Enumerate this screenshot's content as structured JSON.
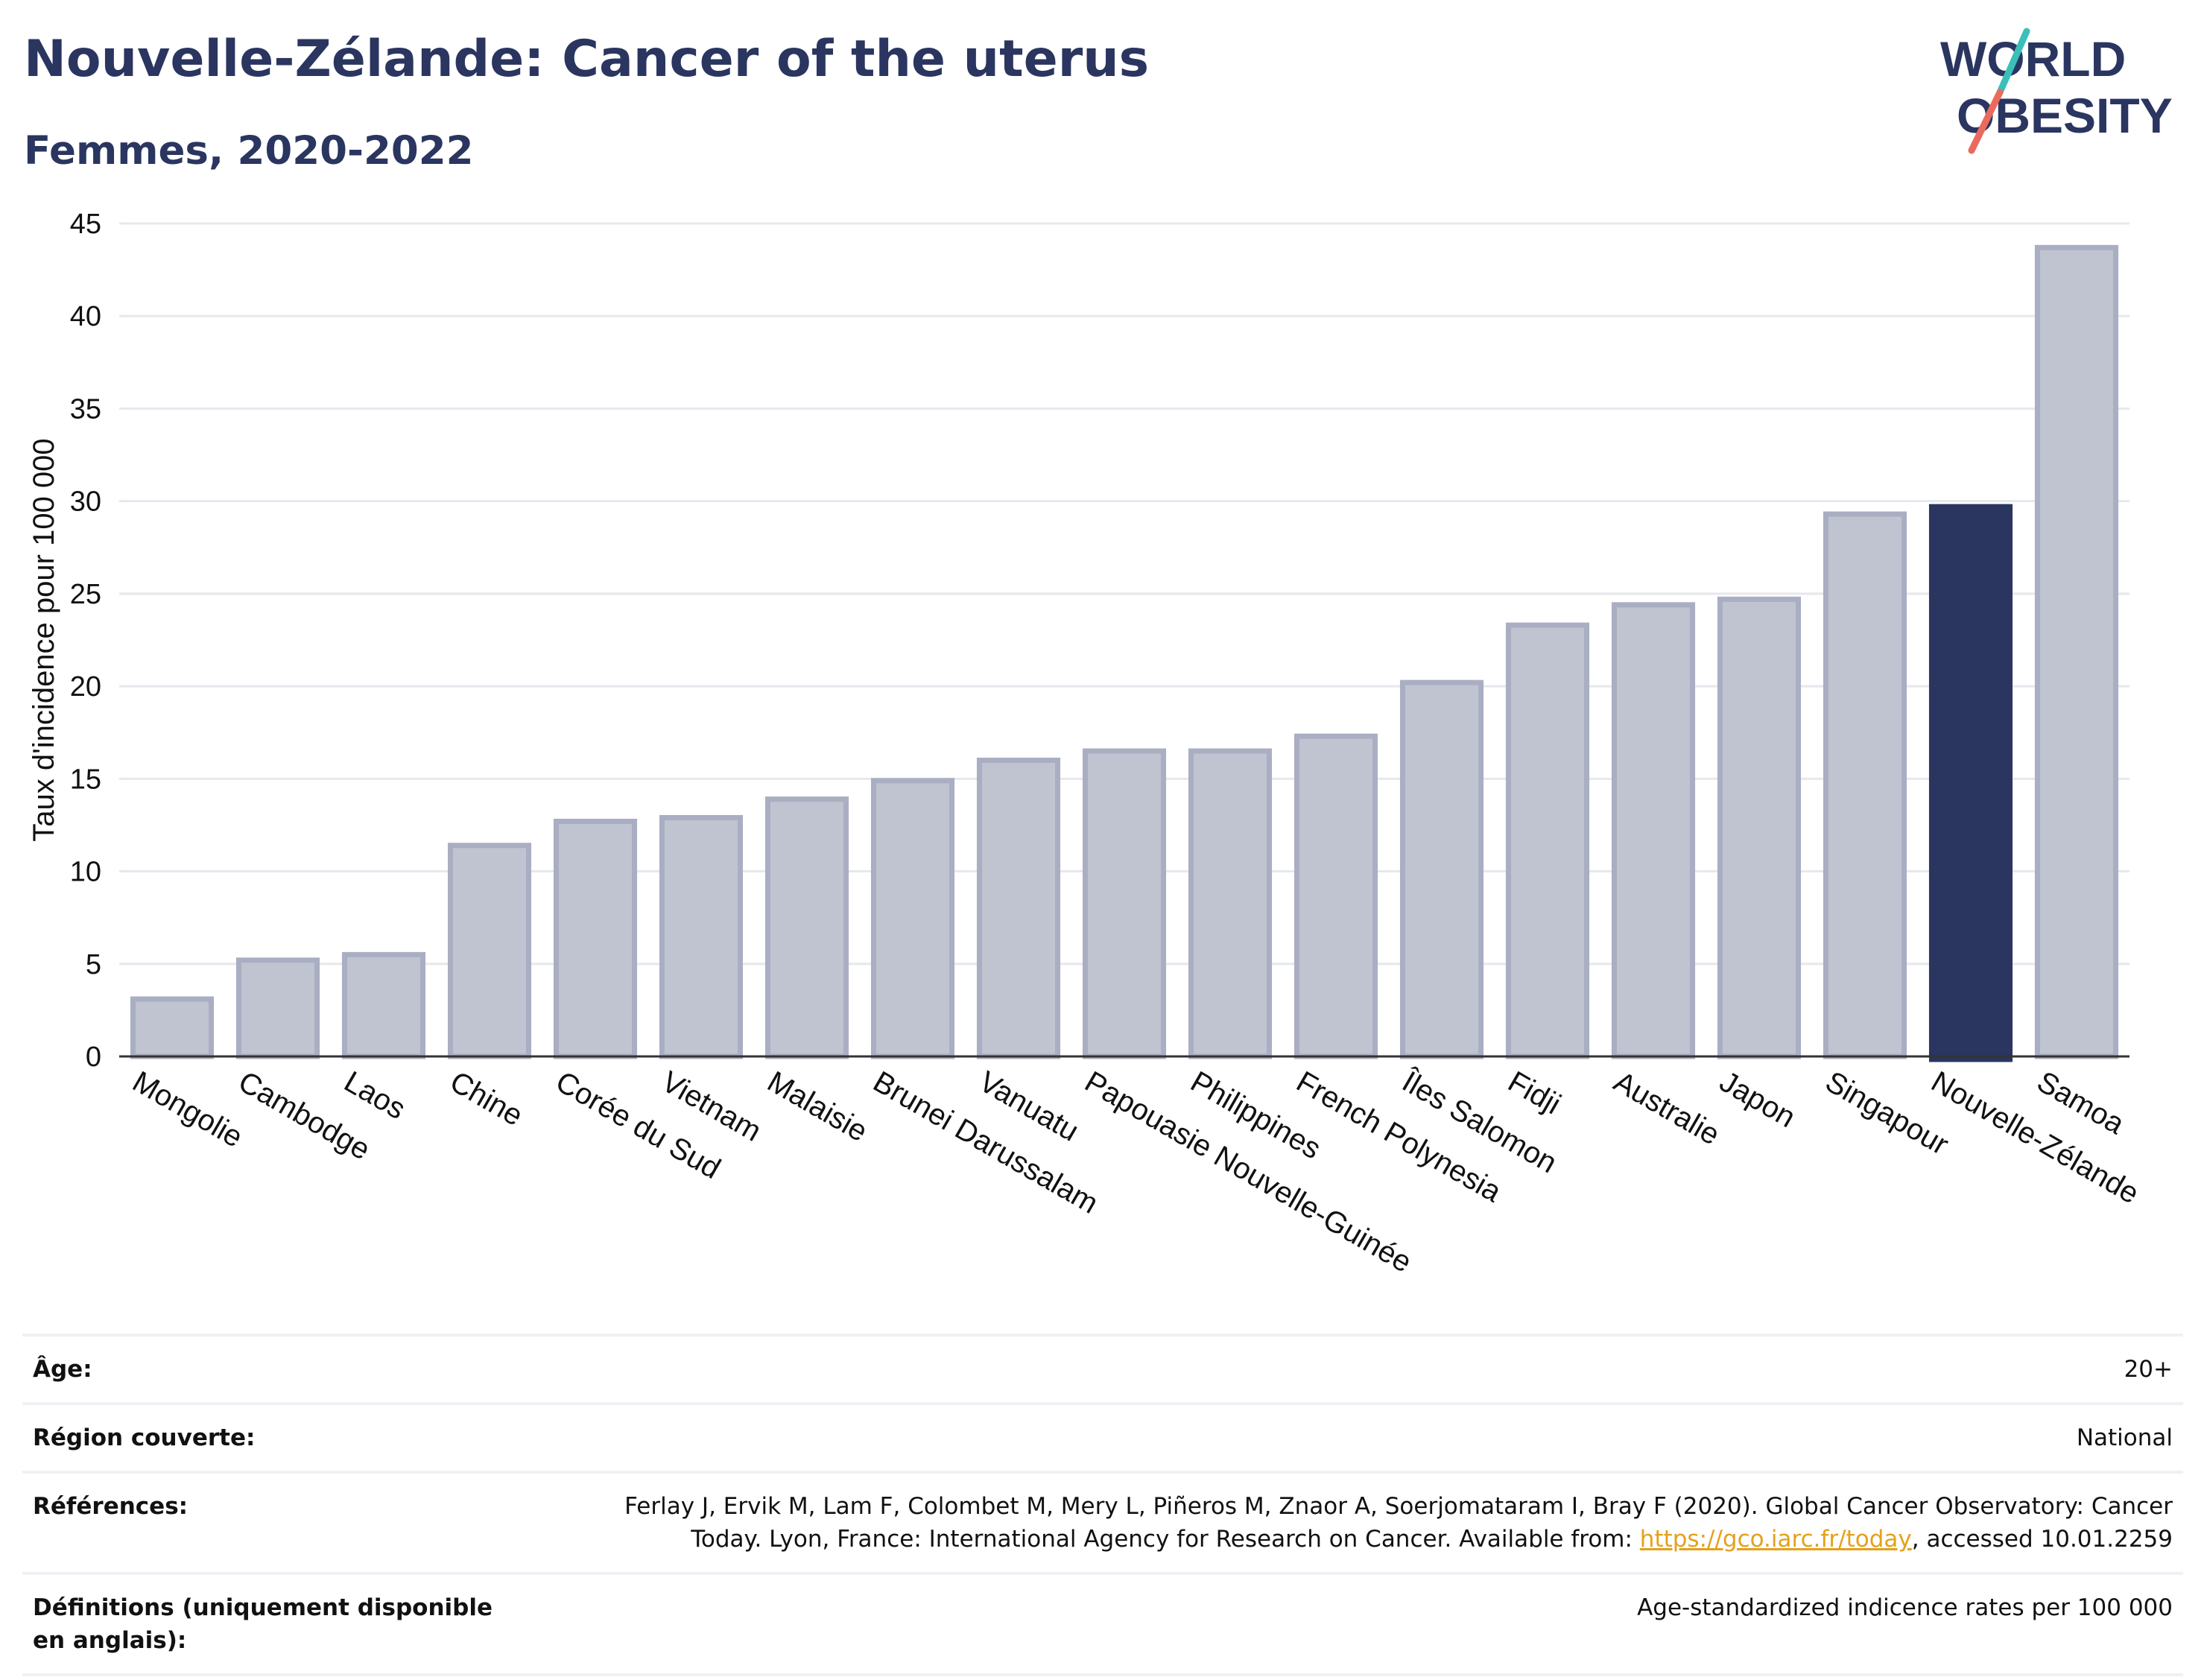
{
  "header": {
    "title": "Nouvelle-Zélande: Cancer of the uterus",
    "subtitle": "Femmes, 2020-2022"
  },
  "logo": {
    "line1": "WORLD",
    "line2": "OBESITY"
  },
  "colors": {
    "bar_default": "#c0c3d0",
    "bar_border": "#a9aec2",
    "bar_highlight": "#2a3560",
    "grid": "#e6e8ee",
    "axis": "#333333",
    "link": "#e4a11b"
  },
  "chart_data": {
    "type": "bar",
    "title": "Nouvelle-Zélande: Cancer of the uterus",
    "subtitle": "Femmes, 2020-2022",
    "xlabel": "",
    "ylabel": "Taux d'incidence pour 100 000",
    "ylim": [
      0,
      45
    ],
    "yticks": [
      0,
      5,
      10,
      15,
      20,
      25,
      30,
      35,
      40,
      45
    ],
    "grid": true,
    "highlight": "Nouvelle-Zélande",
    "categories": [
      "Mongolie",
      "Cambodge",
      "Laos",
      "Chine",
      "Corée du Sud",
      "Vietnam",
      "Malaisie",
      "Brunei Darussalam",
      "Vanuatu",
      "Papouasie Nouvelle-Guinée",
      "Philippines",
      "French Polynesia",
      "Îles Salomon",
      "Fidji",
      "Australie",
      "Japon",
      "Singapour",
      "Nouvelle-Zélande",
      "Samoa"
    ],
    "values": [
      3.1,
      5.2,
      5.5,
      11.4,
      12.7,
      12.9,
      13.9,
      14.9,
      16.0,
      16.5,
      16.5,
      17.3,
      20.2,
      23.3,
      24.4,
      24.7,
      29.3,
      29.7,
      43.7
    ]
  },
  "meta": [
    {
      "key": "Âge:",
      "value": "20+"
    },
    {
      "key": "Région couverte:",
      "value": "National"
    },
    {
      "key": "Références:",
      "value_before": "Ferlay J, Ervik M, Lam F, Colombet M, Mery L, Piñeros M, Znaor A, Soerjomataram I, Bray F (2020). Global Cancer Observatory: Cancer Today. Lyon, France: International Agency for Research on Cancer. Available from: ",
      "link": "https://gco.iarc.fr/today",
      "value_after": ", accessed 10.01.2259"
    },
    {
      "key": "Définitions (uniquement disponible en anglais):",
      "value": "Age-standardized indicence rates per 100 000"
    }
  ]
}
